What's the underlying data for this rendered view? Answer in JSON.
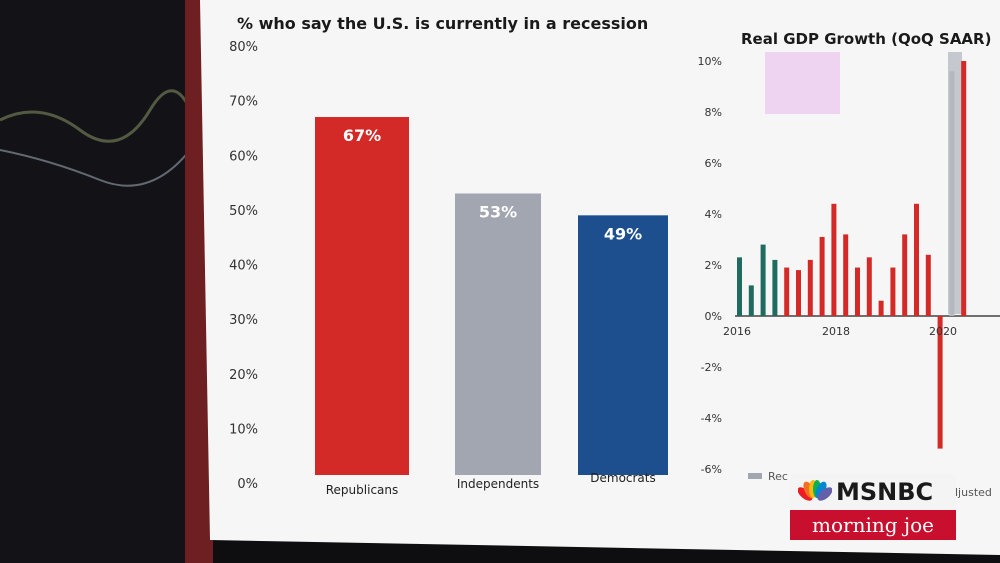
{
  "chart_data": [
    {
      "type": "bar",
      "title": "% who say the U.S. is currently in a recession",
      "categories": [
        "Republicans",
        "Independents",
        "Democrats"
      ],
      "values": [
        67,
        53,
        49
      ],
      "data_labels": [
        "67%",
        "53%",
        "49%"
      ],
      "ylim": [
        0,
        80
      ],
      "yticks": [
        "0%",
        "10%",
        "20%",
        "30%",
        "40%",
        "50%",
        "60%",
        "70%",
        "80%"
      ],
      "colors": [
        "#d42a27",
        "#a2a6b0",
        "#1d4f8f"
      ],
      "grid": false
    },
    {
      "type": "bar",
      "title": "Real GDP Growth (QoQ SAAR)",
      "ylim": [
        -6,
        10
      ],
      "yticks": [
        "10%",
        "8%",
        "6%",
        "4%",
        "2%",
        "0%",
        "-2%",
        "-4%",
        "-6%"
      ],
      "xticks": [
        "2016",
        "2018",
        "2020"
      ],
      "bar_values": [
        2.3,
        1.2,
        2.8,
        2.2,
        1.9,
        1.8,
        2.2,
        3.1,
        4.4,
        3.2,
        1.9,
        2.3,
        0.6,
        1.9,
        3.2,
        4.4,
        2.4,
        -5.2,
        9.6,
        10
      ],
      "bar_colors": [
        "#1f6b5f",
        "#1f6b5f",
        "#1f6b5f",
        "#1f6b5f",
        "#d42a27",
        "#d42a27",
        "#d42a27",
        "#d42a27",
        "#d42a27",
        "#d42a27",
        "#d42a27",
        "#d42a27",
        "#d42a27",
        "#d42a27",
        "#d42a27",
        "#d42a27",
        "#d42a27",
        "#d42a27",
        "#b5b8bf",
        "#d42a27"
      ],
      "legend": [
        "Rec",
        "ljusted"
      ],
      "legend_colors": [
        "#a2a6b0",
        "#ffffff"
      ]
    }
  ],
  "branding": {
    "network": "MSNBC",
    "show": "morning joe",
    "peacock_colors": [
      "#ed1c24",
      "#f37021",
      "#fcb711",
      "#0db14b",
      "#0089d0",
      "#6460aa"
    ]
  }
}
